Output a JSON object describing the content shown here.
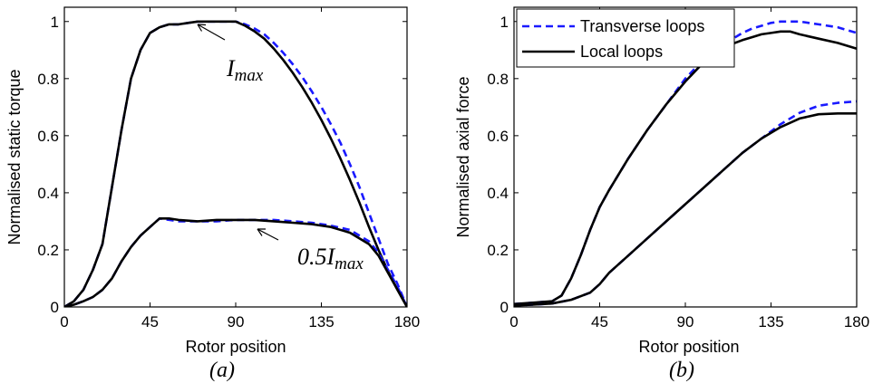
{
  "colors": {
    "transverse": "#1a1aff",
    "local": "#000000",
    "axes": "#000000"
  },
  "chart_data": [
    {
      "type": "line",
      "caption": "(a)",
      "xlabel": "Rotor position",
      "ylabel": "Normalised static torque",
      "xlim": [
        0,
        180
      ],
      "ylim": [
        0,
        1.05
      ],
      "xticks": [
        0,
        45,
        90,
        135,
        180
      ],
      "yticks": [
        0,
        0.2,
        0.4,
        0.6,
        0.8,
        1
      ],
      "annotations": [
        {
          "text_main": "I",
          "text_sub": "max",
          "points_to": [
            70,
            1.0
          ]
        },
        {
          "text_main": "0.5I",
          "text_sub": "max",
          "points_to": [
            100,
            0.305
          ]
        }
      ],
      "series": [
        {
          "style": "dashed",
          "color": "transverse",
          "x": [
            0,
            5,
            10,
            15,
            20,
            25,
            30,
            35,
            40,
            45,
            50,
            55,
            60,
            65,
            70,
            75,
            80,
            85,
            90,
            95,
            100,
            105,
            110,
            115,
            120,
            125,
            130,
            135,
            140,
            145,
            150,
            155,
            160,
            165,
            170,
            175,
            180
          ],
          "y": [
            0,
            0.02,
            0.06,
            0.13,
            0.22,
            0.42,
            0.62,
            0.8,
            0.9,
            0.96,
            0.98,
            0.99,
            0.99,
            0.995,
            1.0,
            1.0,
            1.0,
            1.0,
            1.0,
            0.99,
            0.975,
            0.955,
            0.925,
            0.89,
            0.85,
            0.805,
            0.755,
            0.7,
            0.64,
            0.575,
            0.5,
            0.42,
            0.33,
            0.24,
            0.15,
            0.08,
            0
          ]
        },
        {
          "style": "solid",
          "color": "local",
          "x": [
            0,
            5,
            10,
            15,
            20,
            25,
            30,
            35,
            40,
            45,
            50,
            55,
            60,
            65,
            70,
            75,
            80,
            85,
            90,
            95,
            100,
            105,
            110,
            115,
            120,
            125,
            130,
            135,
            140,
            145,
            150,
            155,
            160,
            165,
            170,
            175,
            180
          ],
          "y": [
            0,
            0.02,
            0.06,
            0.13,
            0.22,
            0.42,
            0.62,
            0.8,
            0.9,
            0.96,
            0.98,
            0.99,
            0.99,
            0.995,
            1.0,
            1.0,
            1.0,
            1.0,
            1.0,
            0.985,
            0.965,
            0.94,
            0.905,
            0.865,
            0.82,
            0.77,
            0.715,
            0.655,
            0.59,
            0.52,
            0.445,
            0.365,
            0.28,
            0.2,
            0.125,
            0.06,
            0
          ]
        },
        {
          "style": "dashed",
          "color": "transverse",
          "x": [
            0,
            5,
            10,
            15,
            20,
            25,
            30,
            35,
            40,
            45,
            50,
            55,
            60,
            70,
            80,
            90,
            100,
            110,
            120,
            130,
            140,
            150,
            160,
            165,
            170,
            175,
            180
          ],
          "y": [
            0,
            0.008,
            0.02,
            0.035,
            0.06,
            0.1,
            0.16,
            0.21,
            0.25,
            0.28,
            0.31,
            0.305,
            0.3,
            0.3,
            0.3,
            0.305,
            0.305,
            0.305,
            0.3,
            0.295,
            0.285,
            0.27,
            0.23,
            0.19,
            0.13,
            0.07,
            0
          ]
        },
        {
          "style": "solid",
          "color": "local",
          "x": [
            0,
            5,
            10,
            15,
            20,
            25,
            30,
            35,
            40,
            45,
            50,
            55,
            60,
            70,
            80,
            90,
            100,
            110,
            120,
            130,
            140,
            150,
            160,
            165,
            170,
            175,
            180
          ],
          "y": [
            0,
            0.008,
            0.02,
            0.035,
            0.06,
            0.1,
            0.16,
            0.21,
            0.25,
            0.28,
            0.31,
            0.31,
            0.305,
            0.3,
            0.305,
            0.305,
            0.305,
            0.3,
            0.295,
            0.29,
            0.28,
            0.26,
            0.22,
            0.18,
            0.12,
            0.06,
            0
          ]
        }
      ]
    },
    {
      "type": "line",
      "caption": "(b)",
      "xlabel": "Rotor position",
      "ylabel": "Normalised axial force",
      "xlim": [
        0,
        180
      ],
      "ylim": [
        0,
        1.05
      ],
      "xticks": [
        0,
        45,
        90,
        135,
        180
      ],
      "yticks": [
        0,
        0.2,
        0.4,
        0.6,
        0.8,
        1
      ],
      "legend": {
        "placement": "top-left",
        "entries": [
          {
            "label": "Transverse loops",
            "style": "dashed",
            "color": "transverse"
          },
          {
            "label": "Local loops",
            "style": "solid",
            "color": "local"
          }
        ]
      },
      "series": [
        {
          "style": "dashed",
          "color": "transverse",
          "x": [
            0,
            10,
            20,
            25,
            30,
            35,
            40,
            45,
            50,
            60,
            70,
            80,
            90,
            100,
            110,
            120,
            125,
            130,
            135,
            140,
            145,
            150,
            160,
            170,
            180
          ],
          "y": [
            0.01,
            0.015,
            0.02,
            0.04,
            0.1,
            0.18,
            0.27,
            0.35,
            0.41,
            0.52,
            0.62,
            0.71,
            0.8,
            0.87,
            0.92,
            0.96,
            0.975,
            0.985,
            0.995,
            1.0,
            1.0,
            1.0,
            0.99,
            0.98,
            0.96
          ]
        },
        {
          "style": "solid",
          "color": "local",
          "x": [
            0,
            10,
            20,
            25,
            30,
            35,
            40,
            45,
            50,
            60,
            70,
            80,
            90,
            100,
            110,
            120,
            125,
            130,
            135,
            140,
            145,
            150,
            160,
            170,
            180
          ],
          "y": [
            0.01,
            0.015,
            0.02,
            0.04,
            0.1,
            0.18,
            0.27,
            0.35,
            0.41,
            0.52,
            0.62,
            0.71,
            0.79,
            0.86,
            0.91,
            0.935,
            0.945,
            0.955,
            0.96,
            0.965,
            0.965,
            0.955,
            0.94,
            0.925,
            0.905
          ]
        },
        {
          "style": "dashed",
          "color": "transverse",
          "x": [
            0,
            10,
            20,
            30,
            40,
            45,
            50,
            60,
            70,
            80,
            90,
            100,
            110,
            120,
            130,
            140,
            150,
            160,
            170,
            180
          ],
          "y": [
            0.005,
            0.008,
            0.012,
            0.025,
            0.05,
            0.08,
            0.12,
            0.18,
            0.24,
            0.3,
            0.36,
            0.42,
            0.48,
            0.54,
            0.59,
            0.64,
            0.68,
            0.705,
            0.715,
            0.72
          ]
        },
        {
          "style": "solid",
          "color": "local",
          "x": [
            0,
            10,
            20,
            30,
            40,
            45,
            50,
            60,
            70,
            80,
            90,
            100,
            110,
            120,
            130,
            140,
            150,
            160,
            170,
            180
          ],
          "y": [
            0.005,
            0.008,
            0.012,
            0.025,
            0.05,
            0.08,
            0.12,
            0.18,
            0.24,
            0.3,
            0.36,
            0.42,
            0.48,
            0.54,
            0.59,
            0.63,
            0.66,
            0.675,
            0.678,
            0.678
          ]
        }
      ]
    }
  ]
}
